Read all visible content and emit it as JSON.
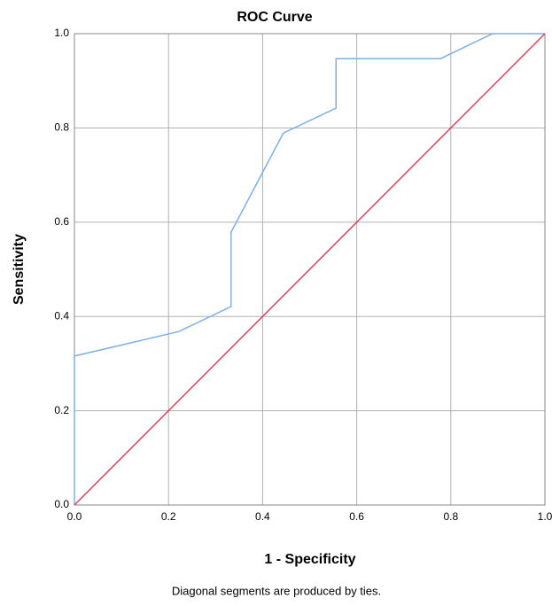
{
  "chart_data": {
    "type": "line",
    "title": "ROC Curve",
    "x_label": "1 - Specificity",
    "y_label": "Sensitivity",
    "footnote": "Diagonal segments are produced by ties.",
    "xlim": [
      0,
      1
    ],
    "ylim": [
      0,
      1
    ],
    "xticks": [
      {
        "value": 0,
        "label": "0.0"
      },
      0.2,
      0.4,
      0.6,
      0.8,
      {
        "value": 1,
        "label": "1.0"
      }
    ],
    "yticks": [
      {
        "value": 0,
        "label": "0.0"
      },
      0.2,
      0.4,
      0.6,
      0.8,
      {
        "value": 1,
        "label": "1.0"
      }
    ],
    "grid": true,
    "series": [
      {
        "color": "#7eb0e6",
        "x": [
          0,
          0,
          0.222,
          0.333,
          0.333,
          0.444,
          0.556,
          0.556,
          0.778,
          0.889,
          1
        ],
        "values": [
          0,
          0.316,
          0.368,
          0.421,
          0.579,
          0.789,
          0.842,
          0.947,
          0.947,
          1,
          1
        ]
      },
      {
        "color": "#e0405a",
        "x": [
          0,
          1
        ],
        "values": [
          0,
          1
        ]
      }
    ]
  }
}
